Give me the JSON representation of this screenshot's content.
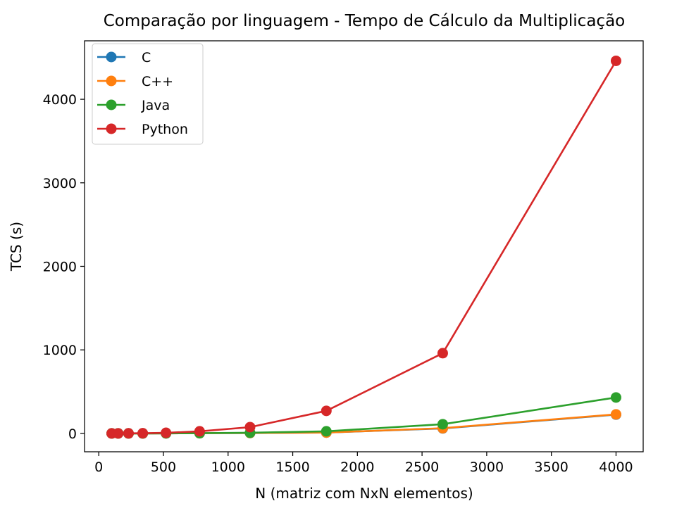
{
  "chart_data": {
    "type": "line",
    "title": "Comparação por linguagem - Tempo de Cálculo da Multiplicação",
    "xlabel": "N (matriz com NxN elementos)",
    "ylabel": "TCS (s)",
    "xlim": [
      -110,
      4210
    ],
    "ylim": [
      -220,
      4700
    ],
    "xticks": [
      0,
      500,
      1000,
      1500,
      2000,
      2500,
      3000,
      3500,
      4000
    ],
    "yticks": [
      0,
      1000,
      2000,
      3000,
      4000
    ],
    "xtick_labels": [
      "0",
      "500",
      "1000",
      "1500",
      "2000",
      "2500",
      "3000",
      "3500",
      "4000"
    ],
    "ytick_labels": [
      "0",
      "1000",
      "2000",
      "3000",
      "4000"
    ],
    "grid": false,
    "legend_position": "top-left",
    "x": [
      100,
      150,
      230,
      340,
      520,
      780,
      1170,
      1760,
      2660,
      4000
    ],
    "series": [
      {
        "name": "C",
        "color": "#1f77b4",
        "values": [
          0,
          0,
          0,
          0,
          1,
          2,
          5,
          10,
          60,
          225
        ]
      },
      {
        "name": "C++",
        "color": "#ff7f0e",
        "values": [
          0,
          0,
          0,
          0,
          1,
          2,
          5,
          10,
          62,
          228
        ]
      },
      {
        "name": "Java",
        "color": "#2ca02c",
        "values": [
          0,
          0,
          0,
          0,
          1,
          3,
          8,
          25,
          110,
          430
        ]
      },
      {
        "name": "Python",
        "color": "#d62728",
        "values": [
          0,
          0,
          1,
          2,
          7,
          25,
          75,
          270,
          960,
          4460
        ]
      }
    ]
  }
}
